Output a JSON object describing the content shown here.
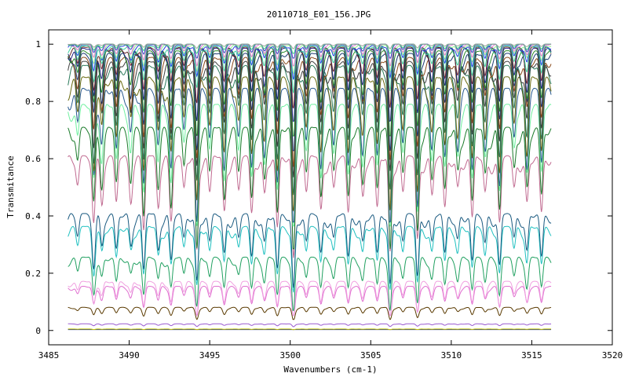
{
  "chart_data": {
    "type": "line",
    "title": "20110718_E01_156.JPG",
    "xlabel": "Wavenumbers (cm-1)",
    "ylabel": "Transmitance",
    "xlim": [
      3485,
      3520
    ],
    "ylim": [
      -0.05,
      1.05
    ],
    "x_ticks": [
      3485,
      3490,
      3495,
      3500,
      3505,
      3510,
      3515,
      3520
    ],
    "y_ticks": [
      0,
      0.2,
      0.4,
      0.6,
      0.8,
      1
    ],
    "x_tick_labels": [
      "3485",
      "3490",
      "3495",
      "3500",
      "3505",
      "3510",
      "3515",
      "3520"
    ],
    "y_tick_labels": [
      "0",
      "0.2",
      "0.4",
      "0.6",
      "0.8",
      "1"
    ],
    "grid": false,
    "x_range": [
      3486.2,
      3516.2
    ],
    "absorption_lines": [
      {
        "x": 3486.8,
        "depth": 0.25
      },
      {
        "x": 3487.8,
        "depth": 0.6
      },
      {
        "x": 3488.3,
        "depth": 0.35
      },
      {
        "x": 3489.2,
        "depth": 0.45
      },
      {
        "x": 3490.1,
        "depth": 0.3
      },
      {
        "x": 3490.9,
        "depth": 0.7
      },
      {
        "x": 3491.8,
        "depth": 0.4
      },
      {
        "x": 3492.6,
        "depth": 0.55
      },
      {
        "x": 3493.4,
        "depth": 0.3
      },
      {
        "x": 3494.2,
        "depth": 0.85
      },
      {
        "x": 3495.0,
        "depth": 0.35
      },
      {
        "x": 3495.9,
        "depth": 0.5
      },
      {
        "x": 3496.8,
        "depth": 0.3
      },
      {
        "x": 3497.6,
        "depth": 0.55
      },
      {
        "x": 3498.4,
        "depth": 0.35
      },
      {
        "x": 3499.2,
        "depth": 0.7
      },
      {
        "x": 3500.2,
        "depth": 0.95
      },
      {
        "x": 3501.0,
        "depth": 0.35
      },
      {
        "x": 3501.9,
        "depth": 0.5
      },
      {
        "x": 3502.7,
        "depth": 0.3
      },
      {
        "x": 3503.6,
        "depth": 0.55
      },
      {
        "x": 3504.5,
        "depth": 0.35
      },
      {
        "x": 3505.4,
        "depth": 0.5
      },
      {
        "x": 3506.2,
        "depth": 0.9
      },
      {
        "x": 3507.0,
        "depth": 0.35
      },
      {
        "x": 3507.9,
        "depth": 0.8
      },
      {
        "x": 3508.8,
        "depth": 0.35
      },
      {
        "x": 3509.6,
        "depth": 0.5
      },
      {
        "x": 3510.4,
        "depth": 0.3
      },
      {
        "x": 3511.3,
        "depth": 0.6
      },
      {
        "x": 3512.1,
        "depth": 0.35
      },
      {
        "x": 3513.0,
        "depth": 0.65
      },
      {
        "x": 3513.9,
        "depth": 0.3
      },
      {
        "x": 3514.7,
        "depth": 0.45
      },
      {
        "x": 3515.6,
        "depth": 0.55
      }
    ],
    "series": [
      {
        "baseline": 0.003,
        "amplitude": 0.0,
        "color": "#1f2f8f"
      },
      {
        "baseline": 0.005,
        "amplitude": 0.003,
        "color": "#c8c800"
      },
      {
        "baseline": 0.022,
        "amplitude": 0.012,
        "color": "#9a5ad0"
      },
      {
        "baseline": 0.075,
        "amplitude": 0.05,
        "color": "#5a3a00"
      },
      {
        "baseline": 0.14,
        "amplitude": 0.12,
        "color": "#e070d0"
      },
      {
        "baseline": 0.155,
        "amplitude": 0.14,
        "color": "#f0a0e0"
      },
      {
        "baseline": 0.23,
        "amplitude": 0.22,
        "color": "#20a060"
      },
      {
        "baseline": 0.33,
        "amplitude": 0.28,
        "color": "#20c0c0"
      },
      {
        "baseline": 0.37,
        "amplitude": 0.32,
        "color": "#1a5a80"
      },
      {
        "baseline": 0.56,
        "amplitude": 0.42,
        "color": "#c06a90"
      },
      {
        "baseline": 0.65,
        "amplitude": 0.5,
        "color": "#1a7a2a"
      },
      {
        "baseline": 0.73,
        "amplitude": 0.5,
        "color": "#70f0a0"
      },
      {
        "baseline": 0.78,
        "amplitude": 0.55,
        "color": "#2a5a90"
      },
      {
        "baseline": 0.82,
        "amplitude": 0.55,
        "color": "#6a6a10"
      },
      {
        "baseline": 0.86,
        "amplitude": 0.55,
        "color": "#2a7a5a"
      },
      {
        "baseline": 0.88,
        "amplitude": 0.5,
        "color": "#404040"
      },
      {
        "baseline": 0.9,
        "amplitude": 0.45,
        "color": "#8a4a1a"
      },
      {
        "baseline": 0.92,
        "amplitude": 0.4,
        "color": "#1a3a70"
      },
      {
        "baseline": 0.935,
        "amplitude": 0.35,
        "color": "#2a8a2a"
      },
      {
        "baseline": 0.95,
        "amplitude": 0.3,
        "color": "#202080"
      },
      {
        "baseline": 0.96,
        "amplitude": 0.25,
        "color": "#6a2a2a"
      },
      {
        "baseline": 0.97,
        "amplitude": 0.2,
        "color": "#3ad0a0"
      },
      {
        "baseline": 0.98,
        "amplitude": 0.15,
        "color": "#2040e0"
      },
      {
        "baseline": 0.985,
        "amplitude": 0.12,
        "color": "#90f090"
      },
      {
        "baseline": 0.99,
        "amplitude": 0.09,
        "color": "#e07ad0"
      },
      {
        "baseline": 0.995,
        "amplitude": 0.06,
        "color": "#3050c0"
      },
      {
        "baseline": 0.997,
        "amplitude": 0.04,
        "color": "#40d080"
      },
      {
        "baseline": 0.999,
        "amplitude": 0.02,
        "color": "#a0a0a0"
      }
    ]
  }
}
